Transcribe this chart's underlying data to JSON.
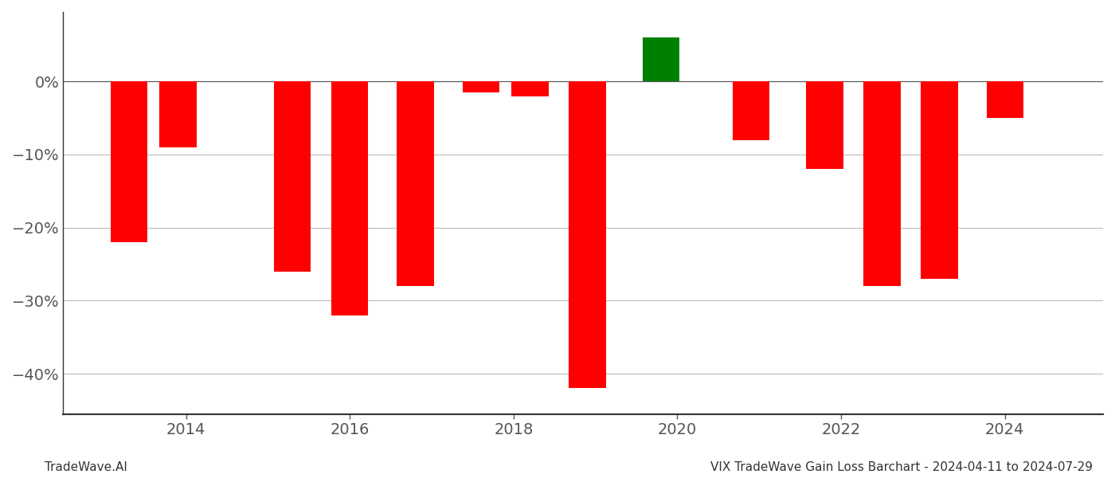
{
  "years": [
    2013.3,
    2013.9,
    2015.3,
    2016.0,
    2016.8,
    2017.6,
    2018.2,
    2018.9,
    2019.8,
    2020.9,
    2021.8,
    2022.5,
    2023.2,
    2024.0
  ],
  "values": [
    -0.22,
    -0.09,
    -0.26,
    -0.32,
    -0.28,
    -0.015,
    -0.02,
    -0.42,
    0.06,
    -0.08,
    -0.12,
    -0.28,
    -0.27,
    -0.05
  ],
  "colors": [
    "#ff0000",
    "#ff0000",
    "#ff0000",
    "#ff0000",
    "#ff0000",
    "#ff0000",
    "#ff0000",
    "#ff0000",
    "#008000",
    "#ff0000",
    "#ff0000",
    "#ff0000",
    "#ff0000",
    "#ff0000"
  ],
  "bar_width": 0.45,
  "xlim": [
    2012.5,
    2025.2
  ],
  "ylim": [
    -0.455,
    0.095
  ],
  "yticks": [
    0.0,
    -0.1,
    -0.2,
    -0.3,
    -0.4
  ],
  "ytick_labels": [
    "0%",
    "−10%",
    "−20%",
    "−30%",
    "−40%"
  ],
  "xticks": [
    2014,
    2016,
    2018,
    2020,
    2022,
    2024
  ],
  "footer_left": "TradeWave.AI",
  "footer_right": "VIX TradeWave Gain Loss Barchart - 2024-04-11 to 2024-07-29",
  "background_color": "#ffffff",
  "grid_color": "#bbbbbb",
  "zero_line_color": "#555555",
  "axis_color": "#333333",
  "text_color": "#555555",
  "footer_fontsize": 11,
  "tick_fontsize": 14,
  "left_spine_color": "#333333"
}
